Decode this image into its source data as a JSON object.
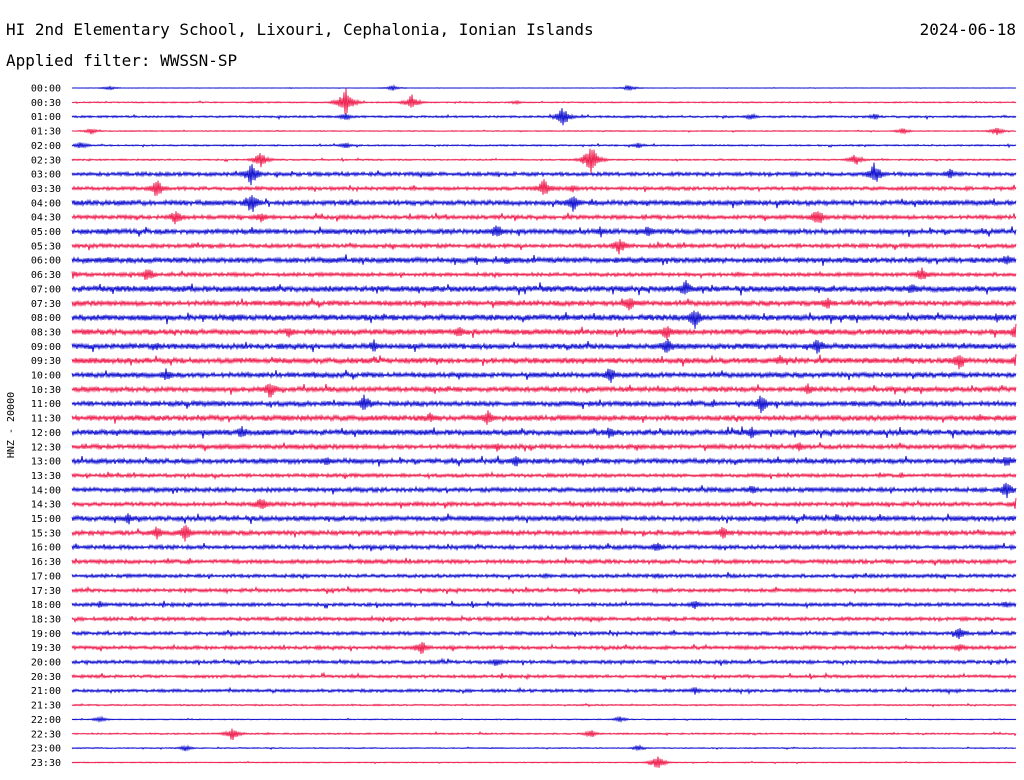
{
  "header": {
    "station": "HI 2nd Elementary School, Lixouri, Cephalonia, Ionian Islands",
    "date": "2024-06-18",
    "filter": "Applied filter: WWSSN-SP"
  },
  "chart_data": {
    "type": "line",
    "channel_label": "HNZ - 20000",
    "row_labels": [
      "00:00",
      "00:30",
      "01:00",
      "01:30",
      "02:00",
      "02:30",
      "03:00",
      "03:30",
      "04:00",
      "04:30",
      "05:00",
      "05:30",
      "06:00",
      "06:30",
      "07:00",
      "07:30",
      "08:00",
      "08:30",
      "09:00",
      "09:30",
      "10:00",
      "10:30",
      "11:00",
      "11:30",
      "12:00",
      "12:30",
      "13:00",
      "13:30",
      "14:00",
      "14:30",
      "15:00",
      "15:30",
      "16:00",
      "16:30",
      "17:00",
      "17:30",
      "18:00",
      "18:30",
      "19:00",
      "19:30",
      "20:00",
      "20:30",
      "21:00",
      "21:30",
      "22:00",
      "22:30",
      "23:00",
      "23:30"
    ],
    "colors": [
      "#0000cc",
      "#ee1144"
    ],
    "noise_levels": [
      0.2,
      0.5,
      0.8,
      0.4,
      0.6,
      0.6,
      1.5,
      1.4,
      2.0,
      1.6,
      2.0,
      1.6,
      2.2,
      1.5,
      2.4,
      2.0,
      2.4,
      2.2,
      2.2,
      2.2,
      2.0,
      2.0,
      2.0,
      2.2,
      2.2,
      1.8,
      2.0,
      1.4,
      1.8,
      1.6,
      2.0,
      1.8,
      1.6,
      1.6,
      1.4,
      1.4,
      1.4,
      1.4,
      1.4,
      1.4,
      1.4,
      1.2,
      1.2,
      0.6,
      0.4,
      0.6,
      0.4,
      0.4
    ],
    "events": [
      {
        "row": 0,
        "x": 0.04,
        "amp": 2
      },
      {
        "row": 0,
        "x": 0.34,
        "amp": 3
      },
      {
        "row": 0,
        "x": 0.59,
        "amp": 3
      },
      {
        "row": 1,
        "x": 0.29,
        "amp": 14
      },
      {
        "row": 1,
        "x": 0.36,
        "amp": 8
      },
      {
        "row": 1,
        "x": 0.47,
        "amp": 2
      },
      {
        "row": 2,
        "x": 0.29,
        "amp": 4
      },
      {
        "row": 2,
        "x": 0.52,
        "amp": 10
      },
      {
        "row": 2,
        "x": 0.72,
        "amp": 3
      },
      {
        "row": 2,
        "x": 0.85,
        "amp": 3
      },
      {
        "row": 3,
        "x": 0.02,
        "amp": 3
      },
      {
        "row": 3,
        "x": 0.88,
        "amp": 3
      },
      {
        "row": 3,
        "x": 0.98,
        "amp": 4
      },
      {
        "row": 4,
        "x": 0.01,
        "amp": 4
      },
      {
        "row": 4,
        "x": 0.29,
        "amp": 3
      },
      {
        "row": 4,
        "x": 0.6,
        "amp": 3
      },
      {
        "row": 5,
        "x": 0.2,
        "amp": 8
      },
      {
        "row": 5,
        "x": 0.55,
        "amp": 16
      },
      {
        "row": 5,
        "x": 0.83,
        "amp": 6
      },
      {
        "row": 6,
        "x": 0.19,
        "amp": 12
      },
      {
        "row": 6,
        "x": 0.85,
        "amp": 12
      },
      {
        "row": 6,
        "x": 0.93,
        "amp": 6
      },
      {
        "row": 7,
        "x": 0.09,
        "amp": 10
      },
      {
        "row": 7,
        "x": 0.5,
        "amp": 10
      },
      {
        "row": 7,
        "x": 0.53,
        "amp": 5
      },
      {
        "row": 8,
        "x": 0.19,
        "amp": 12
      },
      {
        "row": 8,
        "x": 0.53,
        "amp": 10
      },
      {
        "row": 9,
        "x": 0.11,
        "amp": 8
      },
      {
        "row": 9,
        "x": 0.2,
        "amp": 6
      },
      {
        "row": 9,
        "x": 0.79,
        "amp": 10
      },
      {
        "row": 10,
        "x": 0.45,
        "amp": 8
      },
      {
        "row": 10,
        "x": 0.56,
        "amp": 6
      },
      {
        "row": 10,
        "x": 0.61,
        "amp": 7
      },
      {
        "row": 11,
        "x": 0.58,
        "amp": 9
      },
      {
        "row": 12,
        "x": 0.04,
        "amp": 5
      },
      {
        "row": 12,
        "x": 0.46,
        "amp": 5
      },
      {
        "row": 12,
        "x": 0.99,
        "amp": 6
      },
      {
        "row": 13,
        "x": 0.0,
        "amp": 5
      },
      {
        "row": 13,
        "x": 0.08,
        "amp": 8
      },
      {
        "row": 13,
        "x": 0.9,
        "amp": 8
      },
      {
        "row": 14,
        "x": 0.65,
        "amp": 9
      },
      {
        "row": 14,
        "x": 0.89,
        "amp": 7
      },
      {
        "row": 15,
        "x": 0.59,
        "amp": 8
      },
      {
        "row": 15,
        "x": 0.8,
        "amp": 7
      },
      {
        "row": 16,
        "x": 0.17,
        "amp": 5
      },
      {
        "row": 16,
        "x": 0.66,
        "amp": 11
      },
      {
        "row": 16,
        "x": 0.98,
        "amp": 5
      },
      {
        "row": 17,
        "x": 0.23,
        "amp": 6
      },
      {
        "row": 17,
        "x": 0.41,
        "amp": 6
      },
      {
        "row": 17,
        "x": 0.63,
        "amp": 9
      },
      {
        "row": 17,
        "x": 1.0,
        "amp": 8
      },
      {
        "row": 18,
        "x": 0.09,
        "amp": 4
      },
      {
        "row": 18,
        "x": 0.32,
        "amp": 7
      },
      {
        "row": 18,
        "x": 0.63,
        "amp": 10
      },
      {
        "row": 18,
        "x": 0.79,
        "amp": 9
      },
      {
        "row": 19,
        "x": 0.75,
        "amp": 6
      },
      {
        "row": 19,
        "x": 0.94,
        "amp": 9
      },
      {
        "row": 19,
        "x": 1.0,
        "amp": 7
      },
      {
        "row": 20,
        "x": 0.1,
        "amp": 7
      },
      {
        "row": 20,
        "x": 0.57,
        "amp": 9
      },
      {
        "row": 21,
        "x": 0.21,
        "amp": 10
      },
      {
        "row": 21,
        "x": 0.78,
        "amp": 6
      },
      {
        "row": 22,
        "x": 0.31,
        "amp": 10
      },
      {
        "row": 22,
        "x": 0.73,
        "amp": 10
      },
      {
        "row": 23,
        "x": 0.38,
        "amp": 6
      },
      {
        "row": 23,
        "x": 0.44,
        "amp": 9
      },
      {
        "row": 24,
        "x": 0.18,
        "amp": 7
      },
      {
        "row": 24,
        "x": 0.57,
        "amp": 7
      },
      {
        "row": 24,
        "x": 0.72,
        "amp": 7
      },
      {
        "row": 25,
        "x": 0.45,
        "amp": 5
      },
      {
        "row": 25,
        "x": 0.77,
        "amp": 5
      },
      {
        "row": 26,
        "x": 0.27,
        "amp": 5
      },
      {
        "row": 26,
        "x": 0.47,
        "amp": 7
      },
      {
        "row": 26,
        "x": 0.99,
        "amp": 7
      },
      {
        "row": 28,
        "x": 0.72,
        "amp": 5
      },
      {
        "row": 28,
        "x": 0.99,
        "amp": 10
      },
      {
        "row": 29,
        "x": 0.2,
        "amp": 8
      },
      {
        "row": 29,
        "x": 1.0,
        "amp": 6
      },
      {
        "row": 30,
        "x": 0.06,
        "amp": 6
      },
      {
        "row": 30,
        "x": 0.81,
        "amp": 5
      },
      {
        "row": 31,
        "x": 0.09,
        "amp": 8
      },
      {
        "row": 31,
        "x": 0.12,
        "amp": 9
      },
      {
        "row": 31,
        "x": 0.69,
        "amp": 7
      },
      {
        "row": 32,
        "x": 0.62,
        "amp": 6
      },
      {
        "row": 34,
        "x": 0.62,
        "amp": 3
      },
      {
        "row": 36,
        "x": 0.03,
        "amp": 4
      },
      {
        "row": 36,
        "x": 0.66,
        "amp": 5
      },
      {
        "row": 36,
        "x": 0.99,
        "amp": 4
      },
      {
        "row": 38,
        "x": 0.94,
        "amp": 7
      },
      {
        "row": 39,
        "x": 0.37,
        "amp": 8
      },
      {
        "row": 39,
        "x": 0.94,
        "amp": 5
      },
      {
        "row": 40,
        "x": 0.45,
        "amp": 5
      },
      {
        "row": 42,
        "x": 0.66,
        "amp": 4
      },
      {
        "row": 44,
        "x": 0.03,
        "amp": 3
      },
      {
        "row": 44,
        "x": 0.58,
        "amp": 3
      },
      {
        "row": 45,
        "x": 0.17,
        "amp": 7
      },
      {
        "row": 45,
        "x": 0.55,
        "amp": 4
      },
      {
        "row": 46,
        "x": 0.12,
        "amp": 3
      },
      {
        "row": 46,
        "x": 0.6,
        "amp": 3
      },
      {
        "row": 47,
        "x": 0.62,
        "amp": 7
      }
    ]
  }
}
